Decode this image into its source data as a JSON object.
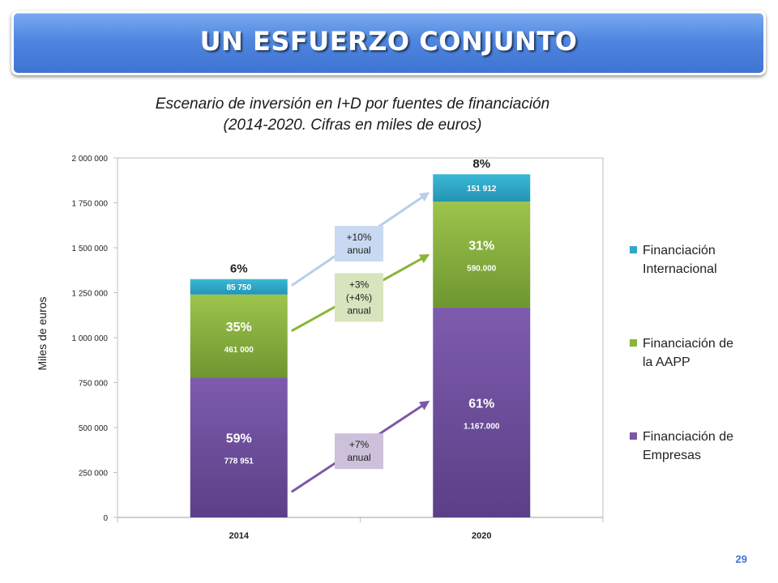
{
  "slide": {
    "title": "UN ESFUERZO CONJUNTO",
    "subtitle_line1": "Escenario de inversión en I+D por fuentes de financiación",
    "subtitle_line2": "(2014-2020. Cifras en miles de euros)",
    "page_number": "29"
  },
  "chart_data": {
    "type": "bar",
    "stacked": true,
    "ylabel": "Miles de euros",
    "ylim": [
      0,
      2000000
    ],
    "yticks": [
      0,
      250000,
      500000,
      750000,
      1000000,
      1250000,
      1500000,
      1750000,
      2000000
    ],
    "ytick_labels": [
      "0",
      "250 000",
      "500 000",
      "750 000",
      "1 000 000",
      "1 250 000",
      "1 500 000",
      "1 750 000",
      "2 000 000"
    ],
    "categories": [
      "2014",
      "2020"
    ],
    "grid": false,
    "legend_position": "right",
    "series": [
      {
        "name": "Financiación de Empresas",
        "legend_lines": [
          "Financiación de",
          "Empresas"
        ],
        "color": "#7b58a8",
        "values": [
          778951,
          1167000
        ],
        "value_labels": [
          "778 951",
          "1.167.000"
        ],
        "pct_labels": [
          "59%",
          "61%"
        ]
      },
      {
        "name": "Financiación de la AAPP",
        "legend_lines": [
          "Financiación de",
          "la AAPP"
        ],
        "color": "#8bb43a",
        "values": [
          461000,
          590000
        ],
        "value_labels": [
          "461 000",
          "590.000"
        ],
        "pct_labels": [
          "35%",
          "31%"
        ]
      },
      {
        "name": "Financiación Internacional",
        "legend_lines": [
          "Financiación",
          "Internacional"
        ],
        "color": "#2fa8c8",
        "values": [
          85750,
          151912
        ],
        "value_labels": [
          "85 750",
          "151 912"
        ],
        "pct_labels": [
          "6%",
          "8%"
        ]
      }
    ],
    "annotations": [
      {
        "series": 2,
        "lines": [
          "+10%",
          "anual"
        ],
        "box_color": "#c9d9f1",
        "arrow_color": "#b7cdec"
      },
      {
        "series": 1,
        "lines": [
          "+3%",
          "(+4%)",
          "anual"
        ],
        "box_color": "#d7e4bd",
        "arrow_color": "#8bb43a"
      },
      {
        "series": 0,
        "lines": [
          "+7%",
          "anual"
        ],
        "box_color": "#ccc0da",
        "arrow_color": "#7b58a8"
      }
    ]
  }
}
